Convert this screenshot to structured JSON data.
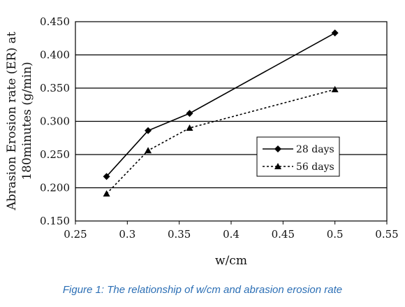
{
  "chart_data": {
    "type": "line",
    "xlabel": "w/cm",
    "ylabel_line1": "Abrasion Erosion rate (ER) at",
    "ylabel_line2": "180minutes  (g/min)",
    "xlim": [
      0.25,
      0.55
    ],
    "ylim": [
      0.15,
      0.45
    ],
    "x_ticks": [
      "0.25",
      "0.3",
      "0.35",
      "0.4",
      "0.45",
      "0.5",
      "0.55"
    ],
    "y_ticks": [
      "0.150",
      "0.200",
      "0.250",
      "0.300",
      "0.350",
      "0.400",
      "0.450"
    ],
    "grid": "horizontal",
    "legend_position": "right-center",
    "series": [
      {
        "name": "28 days",
        "marker": "diamond",
        "line_style": "solid",
        "x": [
          0.28,
          0.32,
          0.36,
          0.5
        ],
        "y": [
          0.217,
          0.286,
          0.312,
          0.433
        ]
      },
      {
        "name": "56 days",
        "marker": "triangle",
        "line_style": "dotted",
        "x": [
          0.28,
          0.32,
          0.36,
          0.5
        ],
        "y": [
          0.191,
          0.256,
          0.29,
          0.348
        ]
      }
    ]
  },
  "caption": "Figure 1: The relationship of w/cm and abrasion erosion rate",
  "colors": {
    "lines": "#000000",
    "caption": "#2c6fb5",
    "grid": "#000000"
  }
}
